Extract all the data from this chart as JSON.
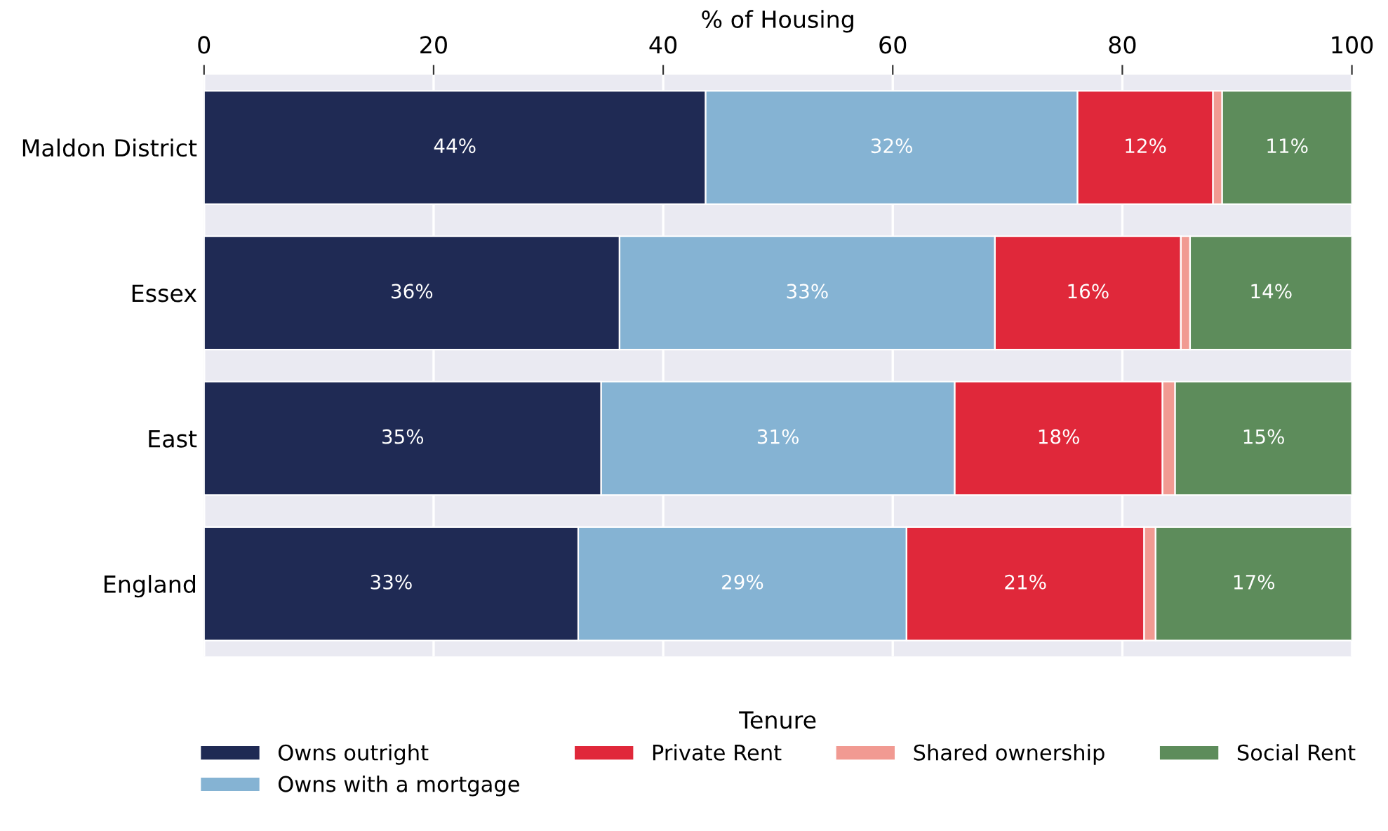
{
  "chart_data": {
    "type": "bar",
    "orientation": "horizontal",
    "stacked": true,
    "xlabel": "% of Housing",
    "legend_title": "Tenure",
    "legend": "bottom",
    "grid": "x",
    "categories": [
      "Maldon District",
      "Essex",
      "East",
      "England"
    ],
    "xlim": [
      0,
      100
    ],
    "xticks": [
      0,
      20,
      40,
      60,
      80,
      100
    ],
    "series": [
      {
        "name": "Owns outright",
        "color": "#1f2a54",
        "values": [
          43.7,
          36.2,
          34.6,
          32.6
        ],
        "value_labels": [
          "44%",
          "36%",
          "35%",
          "33%"
        ]
      },
      {
        "name": "Owns with a mortgage",
        "color": "#85b3d3",
        "values": [
          32.4,
          32.7,
          30.8,
          28.6
        ],
        "value_labels": [
          "32%",
          "33%",
          "31%",
          "29%"
        ]
      },
      {
        "name": "Private Rent",
        "color": "#e0283a",
        "values": [
          11.8,
          16.2,
          18.1,
          20.7
        ],
        "value_labels": [
          "12%",
          "16%",
          "18%",
          "21%"
        ]
      },
      {
        "name": "Shared ownership",
        "color": "#f19a92",
        "values": [
          0.8,
          0.8,
          1.1,
          1.0
        ],
        "value_labels": [
          null,
          null,
          null,
          null
        ]
      },
      {
        "name": "Social Rent",
        "color": "#5d8c5b",
        "values": [
          11.3,
          14.1,
          15.4,
          17.1
        ],
        "value_labels": [
          "11%",
          "14%",
          "15%",
          "17%"
        ]
      }
    ]
  }
}
